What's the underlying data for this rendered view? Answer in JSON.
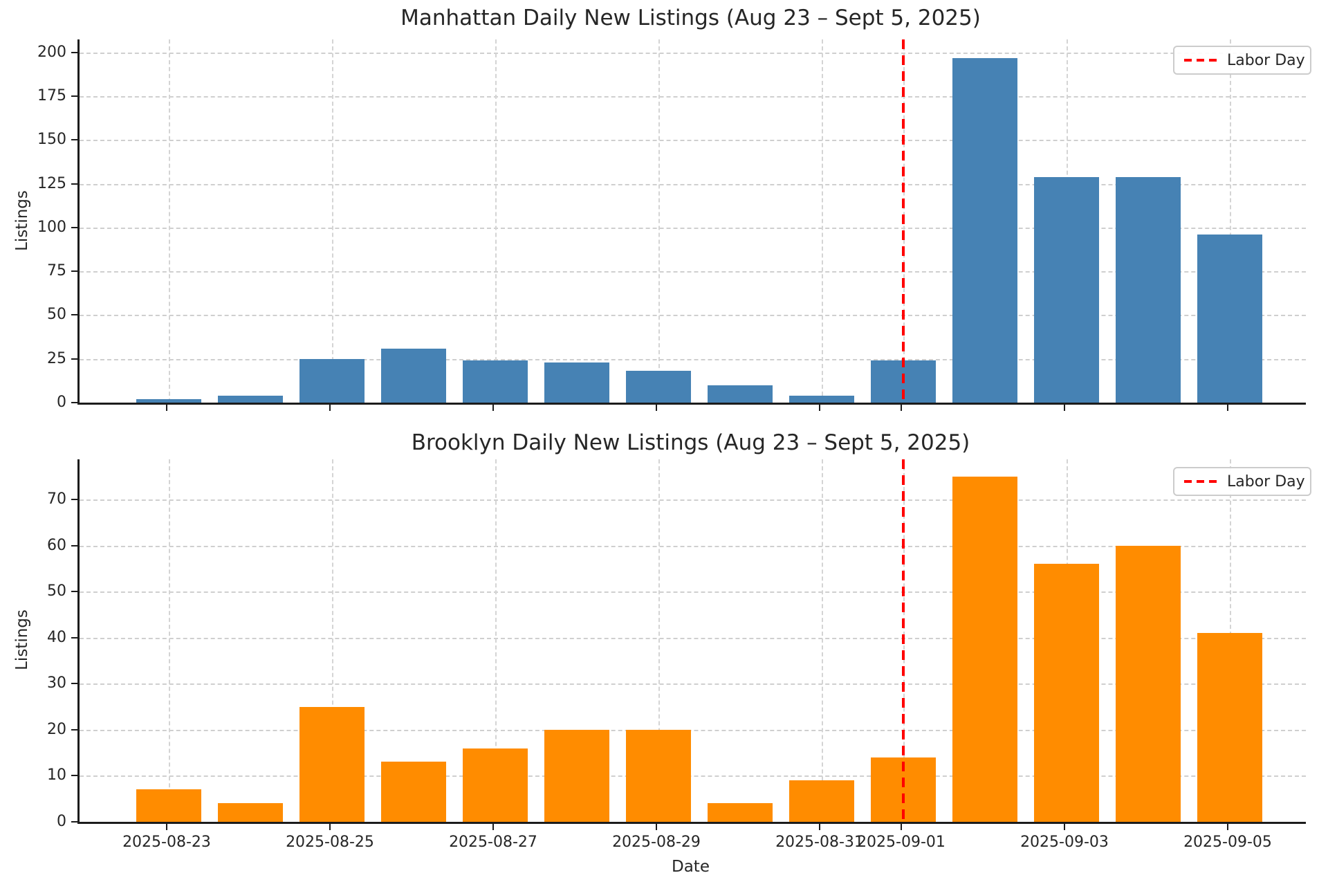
{
  "figure": {
    "background": "#FFFFFF",
    "grid_color": "#CFCFCF",
    "spine_color": "#1C1C1C",
    "text_color": "#262626"
  },
  "chart_data": [
    {
      "type": "bar",
      "title": "Manhattan Daily New Listings (Aug 23 – Sept 5, 2025)",
      "ylabel": "Listings",
      "xlabel": "",
      "categories": [
        "2025-08-23",
        "2025-08-24",
        "2025-08-25",
        "2025-08-26",
        "2025-08-27",
        "2025-08-28",
        "2025-08-29",
        "2025-08-30",
        "2025-08-31",
        "2025-09-01",
        "2025-09-02",
        "2025-09-03",
        "2025-09-04",
        "2025-09-05"
      ],
      "values": [
        2,
        4,
        25,
        31,
        24,
        23,
        18,
        10,
        4,
        24,
        197,
        129,
        129,
        96
      ],
      "bar_color": "#4682B4",
      "ylim": [
        0,
        207.5
      ],
      "yticks": [
        0,
        25,
        50,
        75,
        100,
        125,
        150,
        175,
        200
      ],
      "xticks": [
        "2025-08-23",
        "2025-08-25",
        "2025-08-27",
        "2025-08-29",
        "2025-08-31",
        "2025-09-01",
        "2025-09-03",
        "2025-09-05"
      ],
      "show_x_tick_labels": false,
      "grid": true,
      "legend": {
        "label": "Labor Day",
        "position": "upper right"
      },
      "vline": {
        "x": "2025-09-01",
        "color": "#FF0000",
        "style": "dashed",
        "label": "Labor Day"
      }
    },
    {
      "type": "bar",
      "title": "Brooklyn Daily New Listings (Aug 23 – Sept 5, 2025)",
      "ylabel": "Listings",
      "xlabel": "Date",
      "categories": [
        "2025-08-23",
        "2025-08-24",
        "2025-08-25",
        "2025-08-26",
        "2025-08-27",
        "2025-08-28",
        "2025-08-29",
        "2025-08-30",
        "2025-08-31",
        "2025-09-01",
        "2025-09-02",
        "2025-09-03",
        "2025-09-04",
        "2025-09-05"
      ],
      "values": [
        7,
        4,
        25,
        13,
        16,
        20,
        20,
        4,
        9,
        14,
        75,
        56,
        60,
        41
      ],
      "bar_color": "#FF8C00",
      "ylim": [
        0,
        78.75
      ],
      "yticks": [
        0,
        10,
        20,
        30,
        40,
        50,
        60,
        70
      ],
      "xticks": [
        "2025-08-23",
        "2025-08-25",
        "2025-08-27",
        "2025-08-29",
        "2025-08-31",
        "2025-09-01",
        "2025-09-03",
        "2025-09-05"
      ],
      "show_x_tick_labels": true,
      "grid": true,
      "legend": {
        "label": "Labor Day",
        "position": "upper right"
      },
      "vline": {
        "x": "2025-09-01",
        "color": "#FF0000",
        "style": "dashed",
        "label": "Labor Day"
      }
    }
  ]
}
